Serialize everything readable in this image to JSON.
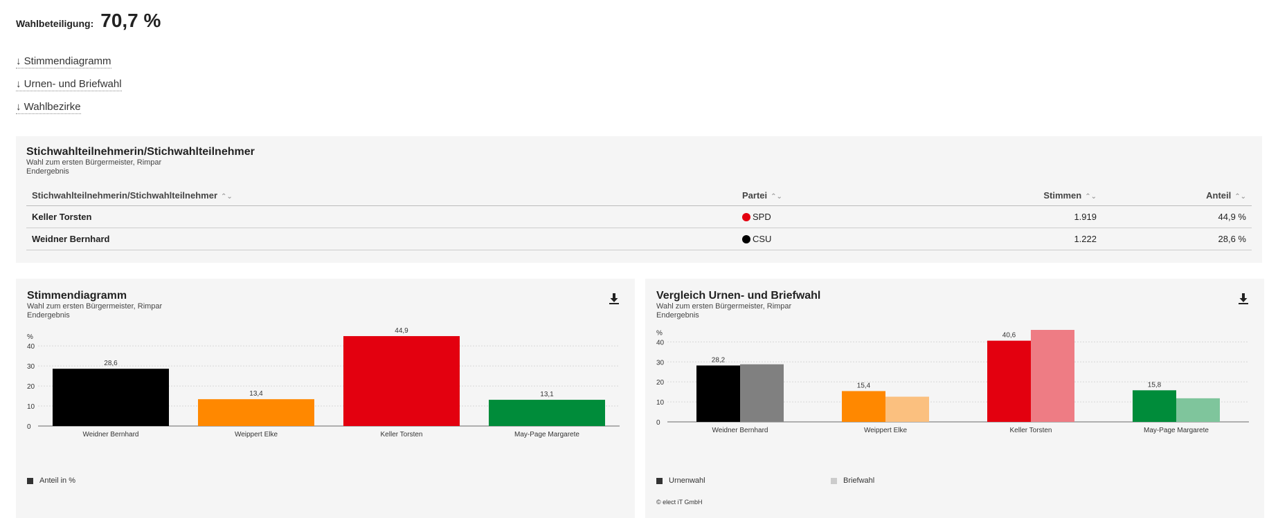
{
  "turnout": {
    "label": "Wahlbeteiligung:",
    "value": "70,7 %"
  },
  "anchors": [
    {
      "label": "↓ Stimmendiagramm"
    },
    {
      "label": "↓ Urnen- und Briefwahl"
    },
    {
      "label": "↓ Wahlbezirke"
    }
  ],
  "table": {
    "title": "Stichwahlteilnehmerin/Stichwahlteilnehmer",
    "subtitle": "Wahl zum ersten Bürgermeister, Rimpar",
    "status": "Endergebnis",
    "columns": [
      "Stichwahlteilnehmerin/Stichwahlteilnehmer",
      "Partei",
      "Stimmen",
      "Anteil"
    ],
    "sort_glyph": "⌃⌄",
    "rows": [
      {
        "name": "Keller Torsten",
        "party": "SPD",
        "party_color": "#e3000f",
        "votes": "1.919",
        "share": "44,9 %"
      },
      {
        "name": "Weidner Bernhard",
        "party": "CSU",
        "party_color": "#000000",
        "votes": "1.222",
        "share": "28,6 %"
      }
    ]
  },
  "chart1": {
    "title": "Stimmendiagramm",
    "subtitle": "Wahl zum ersten Bürgermeister, Rimpar",
    "status": "Endergebnis",
    "legend_label": "Anteil in %",
    "legend_color": "#333333"
  },
  "chart2": {
    "title": "Vergleich Urnen- und Briefwahl",
    "subtitle": "Wahl zum ersten Bürgermeister, Rimpar",
    "status": "Endergebnis",
    "legend": [
      {
        "label": "Urnenwahl",
        "color": "#333333"
      },
      {
        "label": "Briefwahl",
        "color": "#cccccc"
      }
    ],
    "credit": "© elect iT GmbH"
  },
  "chart_data": [
    {
      "type": "bar",
      "ylabel": "%",
      "ylim": [
        0,
        48
      ],
      "yticks": [
        0,
        10,
        20,
        30,
        40
      ],
      "grid": true,
      "legend_position": "bottom-left",
      "categories": [
        "Weidner Bernhard",
        "Weippert Elke",
        "Keller Torsten",
        "May-Page Margarete"
      ],
      "series": [
        {
          "name": "Anteil in %",
          "values": [
            28.6,
            13.4,
            44.9,
            13.1
          ],
          "labels": [
            "28,6",
            "13,4",
            "44,9",
            "13,1"
          ]
        }
      ],
      "colors": [
        "#000000",
        "#ff8800",
        "#e3000f",
        "#008c3a"
      ]
    },
    {
      "type": "bar",
      "ylabel": "%",
      "ylim": [
        0,
        46
      ],
      "yticks": [
        0,
        10,
        20,
        30,
        40
      ],
      "grid": true,
      "legend_position": "bottom-left",
      "categories": [
        "Weidner Bernhard",
        "Weippert Elke",
        "Keller Torsten",
        "May-Page Margarete"
      ],
      "series": [
        {
          "name": "Urnenwahl",
          "values": [
            28.2,
            15.4,
            40.6,
            15.8
          ],
          "labels": [
            "28,2",
            "15,4",
            "40,6",
            "15,8"
          ]
        },
        {
          "name": "Briefwahl",
          "values": [
            28.8,
            12.6,
            46.0,
            11.8
          ],
          "labels": [
            "",
            "",
            "",
            ""
          ]
        }
      ],
      "colors": [
        "#000000",
        "#ff8800",
        "#e3000f",
        "#008c3a"
      ],
      "colors_briefwahl": [
        "#808080",
        "#fbc07f",
        "#ee7c84",
        "#7fc59c"
      ]
    }
  ]
}
